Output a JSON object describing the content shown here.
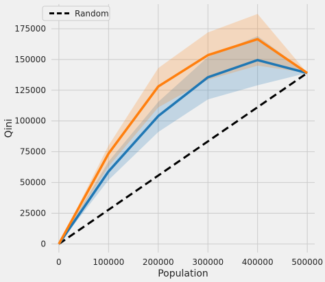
{
  "chart_data": {
    "type": "line",
    "title": "",
    "xlabel": "Population",
    "ylabel": "Qini",
    "xlim": [
      -15000,
      515000
    ],
    "ylim": [
      -7000,
      195000
    ],
    "xticks": [
      0,
      100000,
      200000,
      300000,
      400000,
      500000
    ],
    "yticks": [
      0,
      25000,
      50000,
      75000,
      100000,
      125000,
      150000,
      175000
    ],
    "grid": true,
    "legend": {
      "position": "top-left",
      "entries": [
        "Random"
      ]
    },
    "series": [
      {
        "color": "#1f77b4",
        "x": [
          0,
          100000,
          200000,
          300000,
          400000,
          500000
        ],
        "values": [
          0,
          59000,
          104000,
          135500,
          149500,
          139000
        ],
        "lower": [
          0,
          52000,
          91000,
          117500,
          129000,
          139000
        ],
        "upper": [
          0,
          67000,
          115500,
          152000,
          169000,
          139000
        ]
      },
      {
        "color": "#ff7f0e",
        "x": [
          0,
          100000,
          200000,
          300000,
          400000,
          500000
        ],
        "values": [
          0,
          73500,
          128000,
          153500,
          166500,
          139000
        ],
        "lower": [
          0,
          63000,
          111000,
          133500,
          145000,
          139000
        ],
        "upper": [
          0,
          80000,
          143000,
          172000,
          187000,
          139000
        ]
      },
      {
        "name": "Random",
        "color": "#000000",
        "style": "dashed",
        "x": [
          0,
          500000
        ],
        "values": [
          0,
          139000
        ]
      }
    ]
  }
}
